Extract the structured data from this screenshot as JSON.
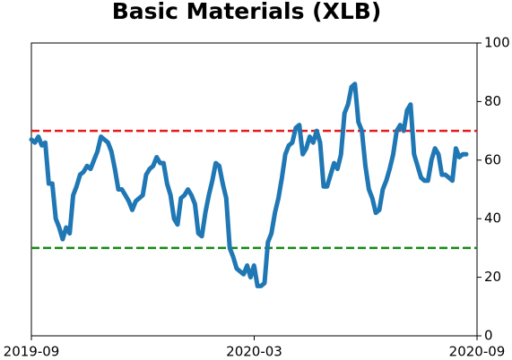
{
  "chart_data": {
    "type": "line",
    "title": "Basic Materials (XLB)",
    "xlim": [
      "2019-09",
      "2020-09"
    ],
    "xticks": [
      "2019-09",
      "2020-03",
      "2020-09"
    ],
    "ylim": [
      0,
      100
    ],
    "yticks": [
      0,
      20,
      40,
      60,
      80,
      100
    ],
    "y_axis_side": "right",
    "hlines": [
      {
        "value": 70,
        "color": "#e41a1c"
      },
      {
        "value": 30,
        "color": "#138a13"
      }
    ],
    "series": [
      {
        "name": "XLB",
        "color": "#1f77b4",
        "values": [
          67,
          66,
          68,
          65,
          66,
          52,
          52,
          40,
          37,
          33,
          37,
          35,
          48,
          51,
          55,
          56,
          58,
          57,
          60,
          63,
          68,
          67,
          66,
          63,
          57,
          50,
          50,
          48,
          46,
          43,
          46,
          47,
          48,
          55,
          57,
          58,
          61,
          59,
          59,
          52,
          48,
          40,
          38,
          47,
          48,
          50,
          48,
          45,
          35,
          34,
          42,
          48,
          53,
          59,
          58,
          52,
          47,
          30,
          27,
          23,
          22,
          21,
          24,
          20,
          24,
          17,
          17,
          18,
          32,
          35,
          42,
          47,
          54,
          62,
          65,
          66,
          71,
          72,
          62,
          64,
          68,
          66,
          70,
          66,
          51,
          51,
          55,
          59,
          57,
          62,
          76,
          79,
          85,
          86,
          73,
          70,
          58,
          50,
          47,
          42,
          43,
          50,
          53,
          57,
          62,
          70,
          72,
          70,
          77,
          79,
          62,
          58,
          54,
          53,
          53,
          60,
          64,
          62,
          55,
          55,
          54,
          53,
          64,
          61,
          62,
          62
        ]
      }
    ]
  }
}
